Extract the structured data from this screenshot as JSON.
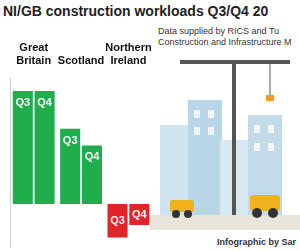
{
  "chart_data": {
    "type": "bar",
    "title": "NI/GB construction workloads Q3/Q4 20",
    "annotations": [
      "Data supplied by RICS and Tu",
      "Construction and Infrastructure M",
      "Infographic by Sar"
    ],
    "categories": [
      "Great Britain",
      "Scotland",
      "Northern Ireland"
    ],
    "series": [
      {
        "name": "Q3",
        "values": [
          27,
          18,
          -8
        ],
        "colors": [
          "#1fae4b",
          "#1fae4b",
          "#e0242a"
        ]
      },
      {
        "name": "Q4",
        "values": [
          27,
          14,
          -5
        ],
        "colors": [
          "#1fae4b",
          "#1fae4b",
          "#e0242a"
        ]
      }
    ],
    "ylim": [
      -10,
      30
    ],
    "grid": false,
    "tick_labels": "x"
  }
}
